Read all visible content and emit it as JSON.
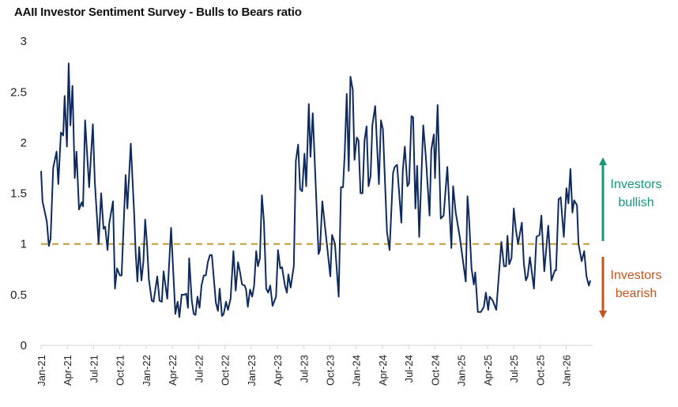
{
  "chart_data": {
    "type": "line",
    "title": "AAII Investor Sentiment Survey - Bulls to Bears ratio",
    "xlabel": "",
    "ylabel": "",
    "ylim": [
      0,
      3
    ],
    "yticks": [
      "0",
      "0.5",
      "1",
      "1.5",
      "2",
      "2.5",
      "3"
    ],
    "xticks": [
      "Jan-21",
      "Apr-21",
      "Jul-21",
      "Oct-21",
      "Jan-22",
      "Apr-22",
      "Jul-22",
      "Oct-22",
      "Jan-23",
      "Apr-23",
      "Jul-23",
      "Oct-23",
      "Jan-24",
      "Apr-24",
      "Jul-24",
      "Oct-24",
      "Jan-25",
      "Apr-25",
      "Jul-25",
      "Oct-25",
      "Jan-26"
    ],
    "grid": false,
    "reference_line": {
      "value": 1,
      "style": "dashed",
      "color": "#c49a3a"
    },
    "series_color": "#0f2a5c",
    "annotations": [
      {
        "text": [
          "Investors",
          "bullish"
        ],
        "direction": "up",
        "color": "#16977e"
      },
      {
        "text": [
          "Investors",
          "bearish"
        ],
        "direction": "down",
        "color": "#c4571f"
      }
    ],
    "x": [
      "2021-01-01",
      "2021-01-06",
      "2021-01-21",
      "2021-01-28",
      "2021-02-03",
      "2021-02-12",
      "2021-02-24",
      "2021-03-02",
      "2021-03-11",
      "2021-03-19",
      "2021-03-24",
      "2021-04-01",
      "2021-04-07",
      "2021-04-13",
      "2021-04-20",
      "2021-04-28",
      "2021-05-04",
      "2021-05-13",
      "2021-05-22",
      "2021-05-27",
      "2021-06-03",
      "2021-06-17",
      "2021-06-30",
      "2021-07-07",
      "2021-07-20",
      "2021-07-29",
      "2021-08-06",
      "2021-08-12",
      "2021-08-20",
      "2021-08-26",
      "2021-09-08",
      "2021-09-15",
      "2021-09-22",
      "2021-10-02",
      "2021-10-08",
      "2021-10-22",
      "2021-10-28",
      "2021-11-09",
      "2021-11-21",
      "2021-11-26",
      "2021-12-02",
      "2021-12-08",
      "2021-12-16",
      "2021-12-23",
      "2021-12-29",
      "2022-01-04",
      "2022-01-11",
      "2022-01-21",
      "2022-01-27",
      "2022-02-09",
      "2022-02-17",
      "2022-02-25",
      "2022-03-03",
      "2022-03-16",
      "2022-03-29",
      "2022-04-13",
      "2022-04-21",
      "2022-04-27",
      "2022-05-05",
      "2022-05-14",
      "2022-05-21",
      "2022-05-27",
      "2022-05-31",
      "2022-06-09",
      "2022-06-16",
      "2022-06-22",
      "2022-06-29",
      "2022-07-06",
      "2022-07-13",
      "2022-07-21",
      "2022-07-28",
      "2022-08-04",
      "2022-08-11",
      "2022-08-18",
      "2022-09-01",
      "2022-09-08",
      "2022-09-14",
      "2022-09-22",
      "2022-09-28",
      "2022-10-06",
      "2022-10-13",
      "2022-10-22",
      "2022-11-01",
      "2022-11-09",
      "2022-11-17",
      "2022-11-24",
      "2022-12-01",
      "2022-12-10",
      "2022-12-15",
      "2022-12-21",
      "2022-12-29",
      "2023-01-05",
      "2023-01-12",
      "2023-01-19",
      "2023-01-25",
      "2023-02-01",
      "2023-02-08",
      "2023-02-15",
      "2023-02-23",
      "2023-03-02",
      "2023-03-09",
      "2023-03-17",
      "2023-03-29",
      "2023-04-05",
      "2023-04-13",
      "2023-04-19",
      "2023-04-29",
      "2023-05-06",
      "2023-05-11",
      "2023-05-19",
      "2023-05-30",
      "2023-06-06",
      "2023-06-14",
      "2023-06-21",
      "2023-06-28",
      "2023-07-06",
      "2023-07-12",
      "2023-07-21",
      "2023-07-27",
      "2023-08-04",
      "2023-08-24",
      "2023-08-29",
      "2023-09-06",
      "2023-10-04",
      "2023-10-10",
      "2023-10-20",
      "2023-11-02",
      "2023-11-10",
      "2023-11-17",
      "2023-11-23",
      "2023-11-30",
      "2023-12-07",
      "2023-12-13",
      "2023-12-21",
      "2023-12-27",
      "2024-01-04",
      "2024-01-10",
      "2024-01-17",
      "2024-01-24",
      "2024-01-31",
      "2024-02-07",
      "2024-02-14",
      "2024-02-21",
      "2024-02-27",
      "2024-03-08",
      "2024-03-21",
      "2024-03-28",
      "2024-04-04",
      "2024-04-18",
      "2024-04-27",
      "2024-05-09",
      "2024-05-15",
      "2024-05-23",
      "2024-06-07",
      "2024-06-12",
      "2024-06-19",
      "2024-06-28",
      "2024-07-04",
      "2024-07-12",
      "2024-07-18",
      "2024-07-26",
      "2024-08-01",
      "2024-08-08",
      "2024-08-22",
      "2024-08-31",
      "2024-09-13",
      "2024-09-19",
      "2024-09-28",
      "2024-10-02",
      "2024-10-11",
      "2024-10-22",
      "2024-11-01",
      "2024-11-14",
      "2024-11-28",
      "2024-12-04",
      "2024-12-13",
      "2024-12-27",
      "2025-01-17",
      "2025-01-23",
      "2025-01-28",
      "2025-02-06",
      "2025-02-14",
      "2025-02-19",
      "2025-02-28",
      "2025-03-11",
      "2025-03-21",
      "2025-03-28",
      "2025-04-05",
      "2025-04-10",
      "2025-04-21",
      "2025-05-03",
      "2025-05-21",
      "2025-05-30",
      "2025-06-06",
      "2025-06-11",
      "2025-06-17",
      "2025-06-25",
      "2025-07-03",
      "2025-07-10",
      "2025-07-18",
      "2025-07-31",
      "2025-08-07",
      "2025-08-14",
      "2025-08-20",
      "2025-08-28",
      "2025-09-11",
      "2025-09-20",
      "2025-10-01",
      "2025-10-07",
      "2025-10-17",
      "2025-10-31",
      "2025-11-11",
      "2025-11-23",
      "2025-11-27",
      "2025-12-06",
      "2025-12-13",
      "2025-12-24",
      "2026-01-02",
      "2026-01-09",
      "2026-01-16",
      "2026-01-23",
      "2026-01-29",
      "2026-02-08",
      "2026-02-13",
      "2026-02-24",
      "2026-03-05",
      "2026-03-13",
      "2026-03-21",
      "2026-03-26"
    ],
    "y": [
      1.72,
      1.42,
      1.22,
      0.98,
      1.05,
      1.75,
      1.91,
      1.59,
      2.1,
      2.07,
      2.46,
      1.96,
      2.78,
      2.17,
      2.56,
      1.65,
      1.91,
      1.34,
      1.41,
      1.37,
      2.22,
      1.56,
      2.18,
      1.61,
      1.0,
      1.5,
      1.15,
      1.17,
      0.94,
      1.2,
      1.42,
      0.56,
      0.76,
      0.69,
      0.69,
      1.68,
      1.35,
      1.99,
      1.28,
      0.91,
      0.63,
      0.97,
      0.64,
      0.83,
      1.24,
      1.02,
      0.65,
      0.44,
      0.43,
      0.68,
      0.44,
      0.43,
      0.73,
      0.46,
      1.16,
      0.31,
      0.43,
      0.28,
      0.5,
      0.5,
      0.51,
      0.37,
      0.86,
      0.44,
      0.31,
      0.3,
      0.48,
      0.37,
      0.59,
      0.69,
      0.69,
      0.82,
      0.89,
      0.89,
      0.42,
      0.34,
      0.56,
      0.29,
      0.31,
      0.43,
      0.35,
      0.46,
      0.93,
      0.54,
      0.82,
      0.72,
      0.6,
      0.59,
      0.55,
      0.38,
      0.55,
      0.48,
      0.59,
      0.93,
      0.78,
      0.86,
      1.48,
      1.22,
      0.56,
      0.52,
      0.59,
      0.39,
      0.48,
      0.94,
      0.76,
      0.77,
      0.59,
      0.52,
      0.7,
      0.57,
      0.78,
      1.82,
      1.98,
      1.54,
      1.52,
      1.89,
      1.57,
      2.38,
      1.86,
      2.29,
      0.9,
      0.94,
      1.42,
      0.68,
      1.09,
      1.0,
      0.48,
      1.56,
      1.56,
      1.89,
      2.48,
      1.72,
      2.65,
      2.52,
      1.83,
      2.05,
      2.02,
      1.5,
      1.5,
      2.02,
      2.16,
      1.57,
      1.67,
      2.17,
      2.36,
      1.59,
      2.22,
      2.13,
      1.12,
      0.94,
      1.7,
      1.76,
      1.78,
      1.21,
      1.72,
      1.96,
      1.57,
      1.6,
      2.26,
      2.25,
      1.35,
      1.77,
      1.07,
      2.17,
      1.87,
      1.28,
      1.93,
      2.08,
      1.65,
      2.37,
      1.25,
      1.28,
      1.76,
      0.96,
      1.57,
      1.31,
      1.07,
      0.63,
      1.47,
      1.28,
      0.76,
      0.6,
      0.72,
      0.33,
      0.33,
      0.38,
      0.52,
      0.35,
      0.48,
      0.44,
      0.35,
      1.02,
      0.78,
      0.78,
      1.08,
      0.8,
      0.86,
      1.35,
      1.15,
      1.0,
      1.21,
      0.81,
      0.64,
      0.68,
      0.87,
      0.56,
      1.07,
      1.09,
      1.28,
      0.73,
      1.18,
      0.64,
      0.74,
      0.74,
      1.44,
      1.46,
      1.07,
      1.55,
      1.4,
      1.74,
      1.31,
      1.43,
      1.38,
      1.0,
      0.83,
      0.93,
      0.68,
      0.59,
      0.64
    ]
  }
}
